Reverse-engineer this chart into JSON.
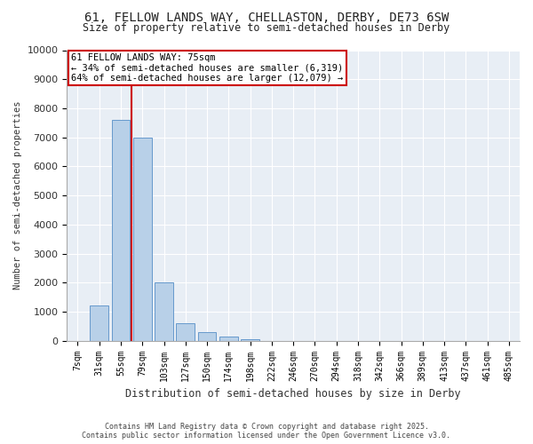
{
  "title_line1": "61, FELLOW LANDS WAY, CHELLASTON, DERBY, DE73 6SW",
  "title_line2": "Size of property relative to semi-detached houses in Derby",
  "xlabel": "Distribution of semi-detached houses by size in Derby",
  "ylabel": "Number of semi-detached properties",
  "categories": [
    "7sqm",
    "31sqm",
    "55sqm",
    "79sqm",
    "103sqm",
    "127sqm",
    "150sqm",
    "174sqm",
    "198sqm",
    "222sqm",
    "246sqm",
    "270sqm",
    "294sqm",
    "318sqm",
    "342sqm",
    "366sqm",
    "389sqm",
    "413sqm",
    "437sqm",
    "461sqm",
    "485sqm"
  ],
  "values": [
    0,
    1200,
    7600,
    7000,
    2000,
    600,
    300,
    150,
    50,
    0,
    0,
    0,
    0,
    0,
    0,
    0,
    0,
    0,
    0,
    0,
    0
  ],
  "bar_color": "#b8d0e8",
  "bar_edge_color": "#6699cc",
  "redline_color": "#cc0000",
  "annotation_text": "61 FELLOW LANDS WAY: 75sqm\n← 34% of semi-detached houses are smaller (6,319)\n64% of semi-detached houses are larger (12,079) →",
  "annotation_box_color": "#ffffff",
  "annotation_border_color": "#cc0000",
  "ylim": [
    0,
    10000
  ],
  "yticks": [
    0,
    1000,
    2000,
    3000,
    4000,
    5000,
    6000,
    7000,
    8000,
    9000,
    10000
  ],
  "footer_line1": "Contains HM Land Registry data © Crown copyright and database right 2025.",
  "footer_line2": "Contains public sector information licensed under the Open Government Licence v3.0.",
  "plot_bg_color": "#e8eef5",
  "fig_bg_color": "#ffffff",
  "grid_color": "#ffffff"
}
